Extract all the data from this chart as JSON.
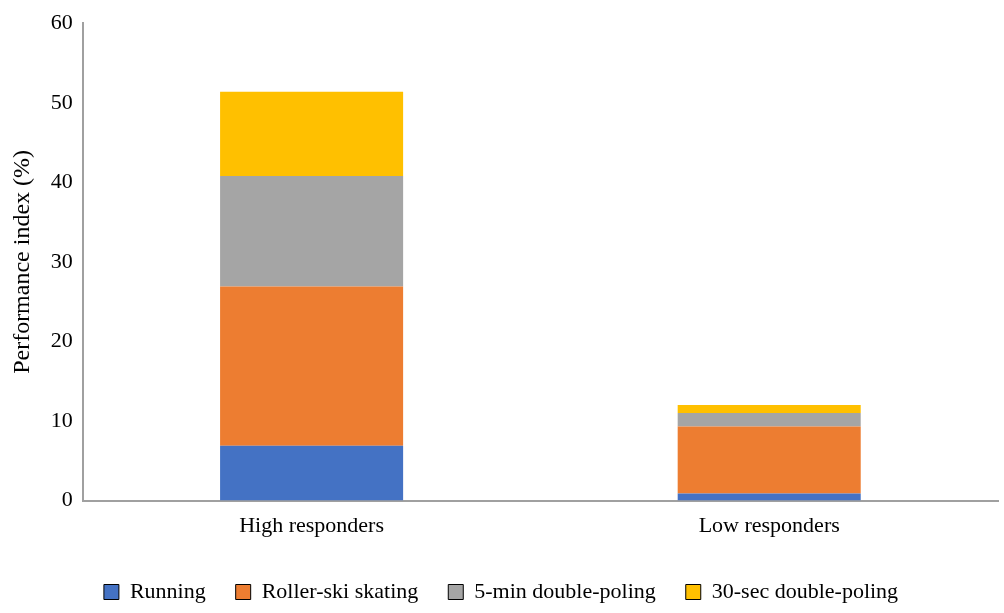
{
  "chart_data": {
    "type": "bar",
    "stacked": true,
    "ylabel": "Performance index (%)",
    "categories": [
      "High responders",
      "Low responders"
    ],
    "series": [
      {
        "name": "Running",
        "color": "#4472c4",
        "values": [
          6.9,
          0.9
        ]
      },
      {
        "name": "Roller-ski skating",
        "color": "#ed7d31",
        "values": [
          20.0,
          8.4
        ]
      },
      {
        "name": "5-min double-poling",
        "color": "#a5a5a5",
        "values": [
          13.9,
          1.7
        ]
      },
      {
        "name": "30-sec double-poling",
        "color": "#ffc000",
        "values": [
          10.6,
          1.0
        ]
      }
    ],
    "ylim": [
      0,
      60
    ],
    "yticks": [
      0,
      10,
      20,
      30,
      40,
      50,
      60
    ],
    "grid": false,
    "legend": "bottom"
  }
}
